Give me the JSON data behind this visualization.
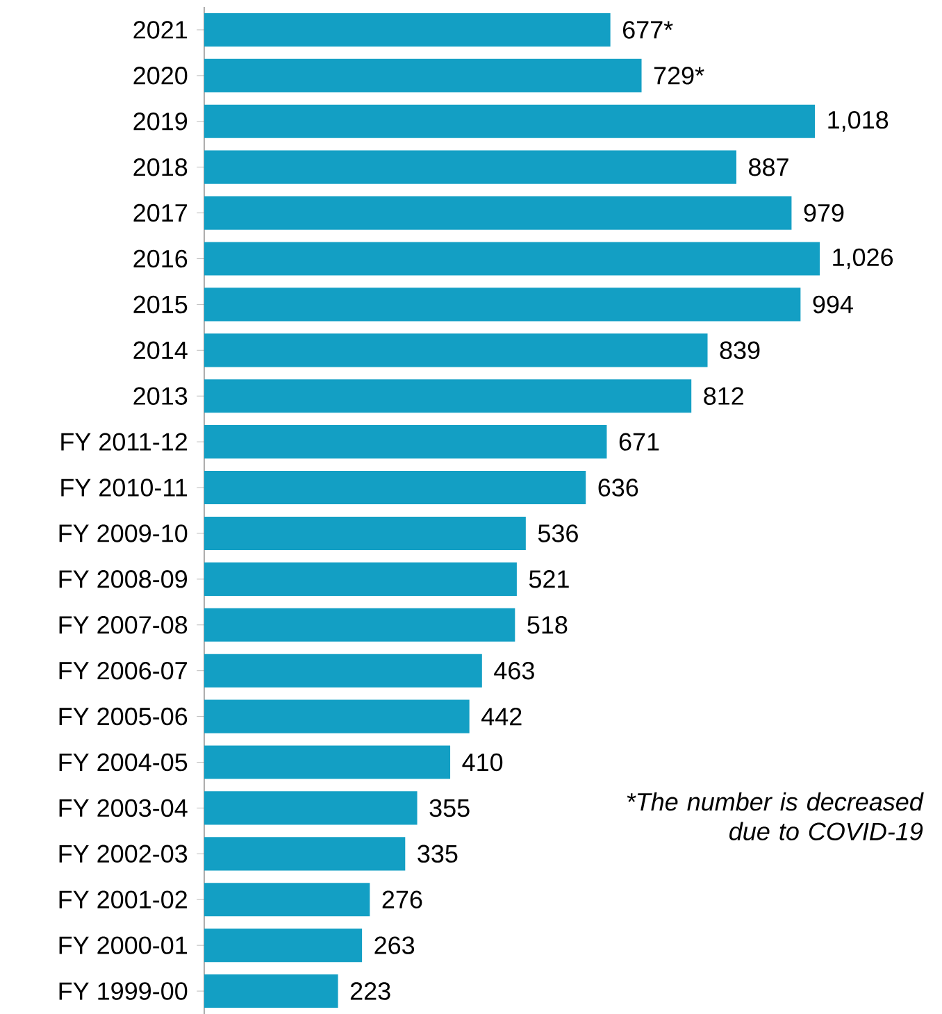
{
  "chart_data": {
    "type": "bar",
    "orientation": "horizontal",
    "categories": [
      "2021",
      "2020",
      "2019",
      "2018",
      "2017",
      "2016",
      "2015",
      "2014",
      "2013",
      "FY 2011-12",
      "FY 2010-11",
      "FY 2009-10",
      "FY 2008-09",
      "FY 2007-08",
      "FY 2006-07",
      "FY 2005-06",
      "FY 2004-05",
      "FY 2003-04",
      "FY 2002-03",
      "FY 2001-02",
      "FY 2000-01",
      "FY 1999-00"
    ],
    "values": [
      677,
      729,
      1018,
      887,
      979,
      1026,
      994,
      839,
      812,
      671,
      636,
      536,
      521,
      518,
      463,
      442,
      410,
      355,
      335,
      276,
      263,
      223
    ],
    "value_labels": [
      "677*",
      "729*",
      "1,018",
      "887",
      "979",
      "1,026",
      "994",
      "839",
      "812",
      "671",
      "636",
      "536",
      "521",
      "518",
      "463",
      "442",
      "410",
      "355",
      "335",
      "276",
      "263",
      "223"
    ],
    "color": "#139fc4",
    "annotations": [
      "*The number is decreased due to COVID-19"
    ]
  }
}
